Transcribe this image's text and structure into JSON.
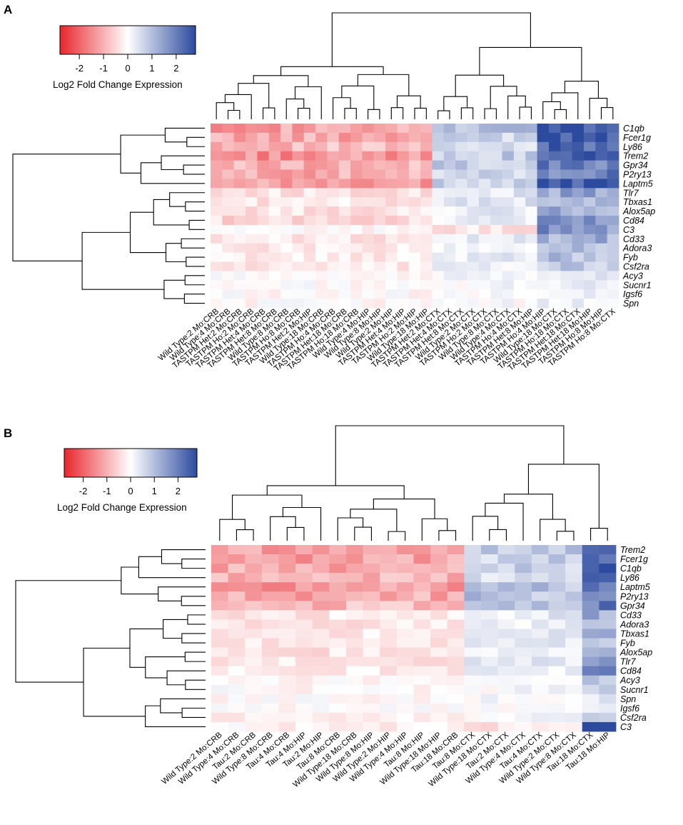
{
  "colors": {
    "low": "#e8262d",
    "mid": "#ffffff",
    "high": "#2c4a9e"
  },
  "legend": {
    "label": "Log2 Fold Change Expression",
    "ticks": [
      "-2",
      "-1",
      "0",
      "1",
      "2"
    ],
    "range": [
      -2.8,
      2.8
    ]
  },
  "chart_data": [
    {
      "type": "heatmap",
      "panel": "A",
      "genes": [
        "C1qb",
        "Fcer1g",
        "Ly86",
        "Trem2",
        "Gpr34",
        "P2ry13",
        "Laptm5",
        "Tlr7",
        "Tbxas1",
        "Alox5ap",
        "Cd84",
        "C3",
        "Cd33",
        "Adora3",
        "Fyb",
        "Csf2ra",
        "Acy3",
        "Sucnr1",
        "Igsf6",
        "Spn"
      ],
      "samples": [
        "Wild Type:2 Mo:CRB",
        "Wild Type:4 Mo:CRB",
        "TASTPM Het:2 Mo:CRB",
        "TASTPM Ho:2 Mo:CRB",
        "TASTPM Het:4 Mo:CRB",
        "TASTPM Het:8 Mo:CRB",
        "Wild Type:8 Mo:CRB",
        "TASTPM Ho:8 Mo:CRB",
        "TASTPM Het:2 Mo:HIP",
        "Wild Type:18 Mo:CRB",
        "TASTPM Ho:4 Mo:CRB",
        "TASTPM Het:18 Mo:CRB",
        "TASTPM Ho:18 Mo:CRB",
        "Wild Type:4 Mo:HIP",
        "Wild Type:8 Mo:HIP",
        "Wild Type:2 Mo:HIP",
        "TASTPM Het:4 Mo:HIP",
        "TASTPM Ho:2 Mo:HIP",
        "Wild Type:18 Mo:HIP",
        "TASTPM Het:2 Mo:CTX",
        "TASTPM Het:4 Mo:CTX",
        "TASTPM Het:8 Mo:CTX",
        "Wild Type:2 Mo:CTX",
        "TASTPM Ho:2 Mo:CTX",
        "Wild Type:8 Mo:CTX",
        "Wild Type:4 Mo:CTX",
        "TASTPM Ho:4 Mo:CTX",
        "TASTPM Het:8 Mo:HIP",
        "TASTPM Ho:4 Mo:HIP",
        "Wild Type:18 Mo:CTX",
        "TASTPM Ho:18 Mo:CTX",
        "TASTPM Het:18 Mo:CTX",
        "TASTPM Het:18 Mo:HIP",
        "TASTPM Ho:8 Mo:HIP",
        "TASTPM Ho:8 Mo:CTX"
      ],
      "groups": [
        {
          "name": "1",
          "cols": [
            0,
            19
          ],
          "rowvals": [
            -1.2,
            -1.1,
            -0.9,
            -1.4,
            -1.0,
            -1.1,
            -1.3,
            -0.35,
            -0.3,
            -0.35,
            -0.5,
            -0.1,
            -0.3,
            -0.25,
            -0.25,
            -0.35,
            -0.05,
            -0.05,
            -0.05,
            -0.05
          ]
        },
        {
          "name": "2",
          "cols": [
            19,
            28
          ],
          "rowvals": [
            0.9,
            0.6,
            0.5,
            0.8,
            0.8,
            0.7,
            0.7,
            0.35,
            0.4,
            0.3,
            0.2,
            -0.3,
            0.25,
            0.25,
            0.3,
            0.15,
            0.1,
            0.1,
            0.05,
            0.05
          ]
        },
        {
          "name": "3",
          "cols": [
            28,
            35
          ],
          "rowvals": [
            2.4,
            2.5,
            2.3,
            2.6,
            2.1,
            2.1,
            2.4,
            1.3,
            1.1,
            1.3,
            1.6,
            1.6,
            1.2,
            1.1,
            1.0,
            0.8,
            0.3,
            0.3,
            0.2,
            0.15
          ]
        }
      ]
    },
    {
      "type": "heatmap",
      "panel": "B",
      "genes": [
        "Trem2",
        "Fcer1g",
        "C1qb",
        "Ly86",
        "Laptm5",
        "P2ry13",
        "Gpr34",
        "Cd33",
        "Adora3",
        "Tbxas1",
        "Fyb",
        "Alox5ap",
        "Tlr7",
        "Cd84",
        "Acy3",
        "Sucnr1",
        "Spn",
        "Igsf6",
        "Csf2ra",
        "C3"
      ],
      "samples": [
        "Wild Type:2 Mo:CRB",
        "Wild Type:4 Mo:CRB",
        "Tau:2 Mo:CRB",
        "Wild Type:8 Mo:CRB",
        "Tau:4 Mo:CRB",
        "Tau:4 Mo:HIP",
        "Tau:2 Mo:HIP",
        "Tau:8 Mo:CRB",
        "Wild Type:18 Mo:CRB",
        "Wild Type:8 Mo:HIP",
        "Wild Type:2 Mo:HIP",
        "Wild Type:4 Mo:HIP",
        "Tau:8 Mo:HIP",
        "Wild Type:18 Mo:HIP",
        "Tau:18 Mo:CRB",
        "Tau:8 Mo:CTX",
        "Wild Type:18 Mo:CTX",
        "Tau:2 Mo:CTX",
        "Wild Type:4 Mo:CTX",
        "Tau:4 Mo:CTX",
        "Wild Type:2 Mo:CTX",
        "Wild Type:8 Mo:CTX",
        "Tau:18 Mo:CTX",
        "Tau:18 Mo:HIP"
      ],
      "groups": [
        {
          "name": "1",
          "cols": [
            0,
            15
          ],
          "rowvals": [
            -1.3,
            -1.2,
            -1.1,
            -0.9,
            -1.3,
            -1.1,
            -0.9,
            -0.3,
            -0.3,
            -0.3,
            -0.25,
            -0.35,
            -0.3,
            -0.3,
            -0.1,
            -0.05,
            -0.05,
            -0.05,
            -0.2,
            -0.15
          ]
        },
        {
          "name": "2",
          "cols": [
            15,
            22
          ],
          "rowvals": [
            0.8,
            0.7,
            0.7,
            0.5,
            0.9,
            0.9,
            0.8,
            0.3,
            0.2,
            0.3,
            0.3,
            0.3,
            0.35,
            0.2,
            0.05,
            0.05,
            0.05,
            0.05,
            0.05,
            -0.3
          ]
        },
        {
          "name": "3",
          "cols": [
            22,
            24
          ],
          "rowvals": [
            2.6,
            2.6,
            2.5,
            2.4,
            2.1,
            1.9,
            2.0,
            1.2,
            1.0,
            1.1,
            1.0,
            1.2,
            1.4,
            2.1,
            0.7,
            0.6,
            0.3,
            0.2,
            0.6,
            2.9
          ]
        }
      ]
    }
  ]
}
